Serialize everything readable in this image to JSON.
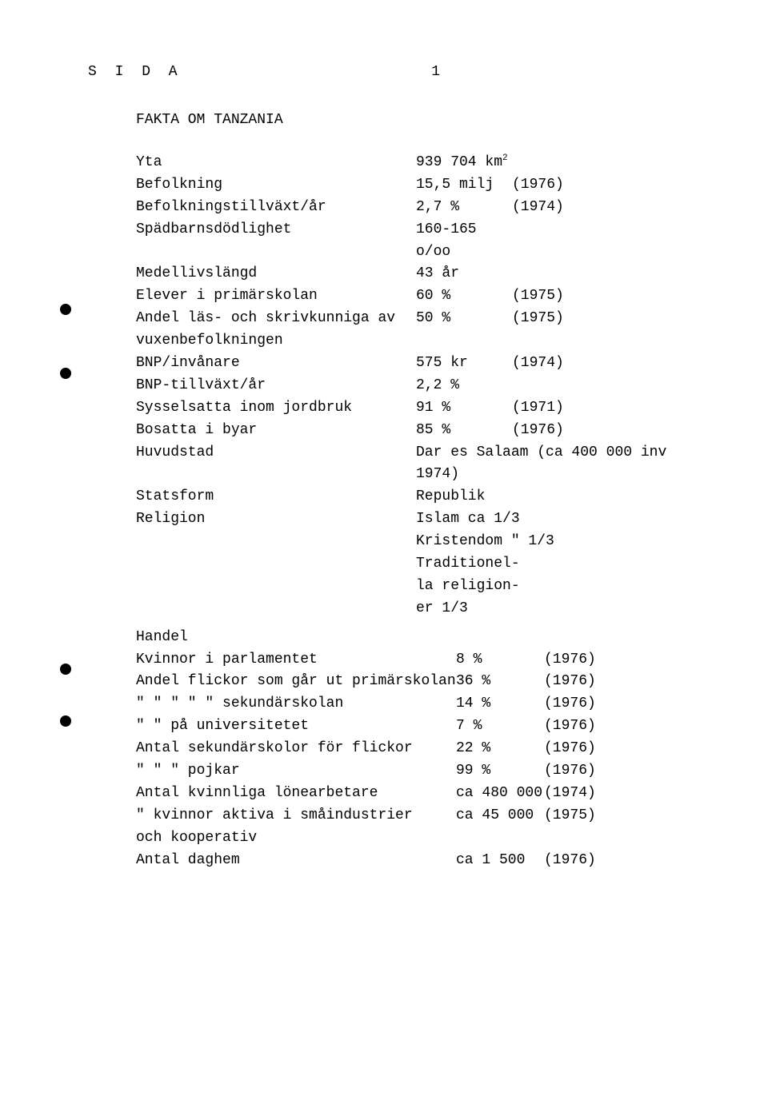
{
  "header": {
    "org": "S I D A",
    "page": "1"
  },
  "title": "FAKTA OM TANZANIA",
  "rows": [
    {
      "label": "Yta",
      "value": "939 704 km",
      "sup": "2",
      "year": ""
    },
    {
      "label": "Befolkning",
      "value": "15,5 milj",
      "year": "(1976)"
    },
    {
      "label": "Befolkningstillväxt/år",
      "value": "2,7 %",
      "year": "(1974)"
    },
    {
      "label": "Spädbarnsdödlighet",
      "value": "160-165 o/oo",
      "year": ""
    },
    {
      "label": "Medellivslängd",
      "value": "43 år",
      "year": ""
    },
    {
      "label": "Elever i primärskolan",
      "value": "60 %",
      "year": "(1975)"
    },
    {
      "label": "Andel läs- och skrivkunniga av\nvuxenbefolkningen",
      "value": "50 %",
      "year": "(1975)"
    },
    {
      "label": "BNP/invånare",
      "value": "575 kr",
      "year": "(1974)"
    },
    {
      "label": "BNP-tillväxt/år",
      "value": "2,2 %",
      "year": ""
    },
    {
      "label": "Sysselsatta inom jordbruk",
      "value": "91 %",
      "year": "(1971)"
    },
    {
      "label": "Bosatta i byar",
      "value": "85 %",
      "year": "(1976)"
    },
    {
      "label": "Huvudstad",
      "wide": "Dar es Salaam (ca 400 000 inv 1974)"
    },
    {
      "label": "Statsform",
      "wide": "Republik"
    },
    {
      "label": "Religion",
      "wide": "Islam      ca 1/3\nKristendom \" 1/3\nTraditionel-\nla religion-\ner         1/3"
    }
  ],
  "section2_title": "Handel",
  "rows2": [
    {
      "label": "Kvinnor i parlamentet",
      "value": "8 %",
      "year": "(1976)"
    },
    {
      "label": "Andel flickor som går ut primärskolan",
      "value": "36 %",
      "year": "(1976)"
    },
    {
      "label": "\"    \"     \"   \"   \"  sekundärskolan",
      "value": "14 %",
      "year": "(1976)"
    },
    {
      "label": "\"    \"     på universitetet",
      "value": "7 %",
      "year": "(1976)"
    },
    {
      "label": "Antal sekundärskolor för flickor",
      "value": "22 %",
      "year": "(1976)"
    },
    {
      "label": "\"    \"             \"   pojkar",
      "value": "99 %",
      "year": "(1976)"
    },
    {
      "label": "Antal kvinnliga lönearbetare",
      "value": "ca 480 000",
      "year": "(1974)"
    },
    {
      "label": "\"  kvinnor aktiva i småindustrier\noch kooperativ",
      "value": "ca 45 000",
      "year": "(1975)"
    },
    {
      "label": "Antal daghem",
      "value": "ca 1 500",
      "year": "(1976)"
    }
  ],
  "holes": [
    380,
    460,
    830,
    895
  ]
}
